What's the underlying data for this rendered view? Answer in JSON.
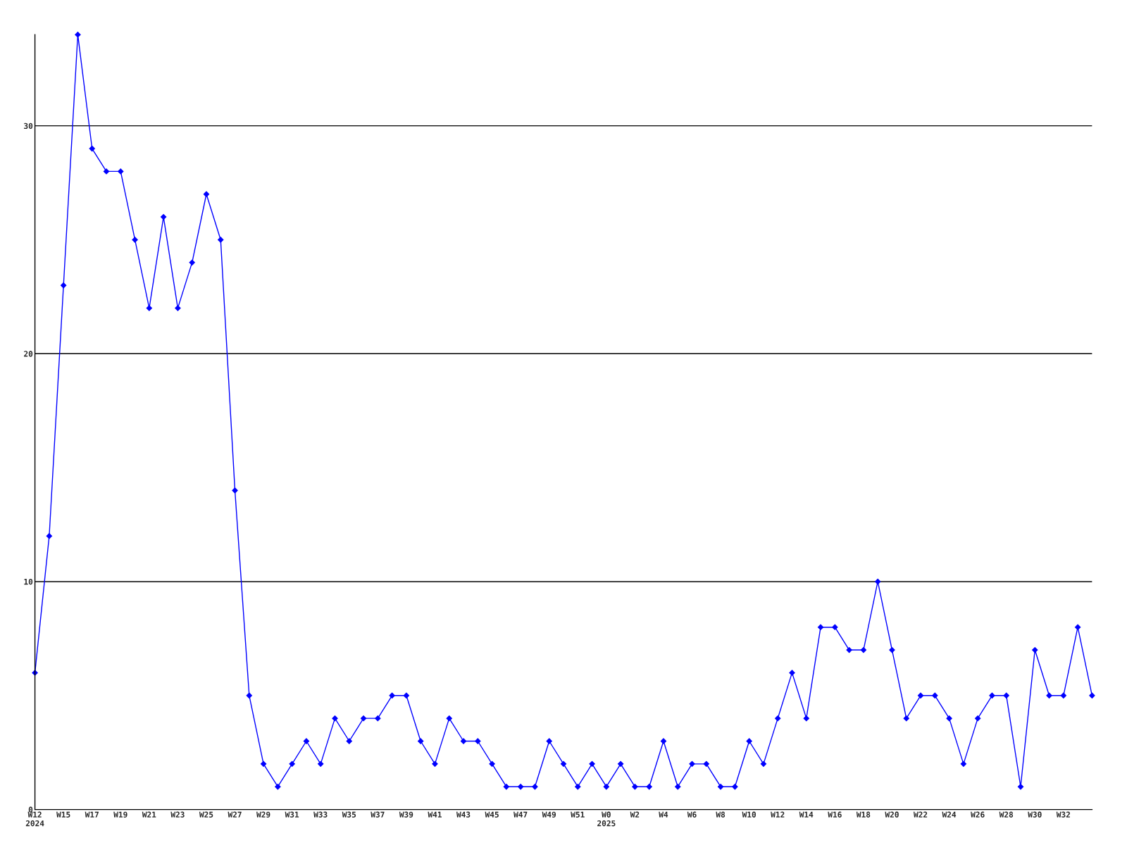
{
  "chart_data": {
    "type": "line",
    "categories": [
      "W12\n2024",
      null,
      "W15",
      null,
      "W17",
      null,
      "W19",
      null,
      "W21",
      null,
      "W23",
      null,
      "W25",
      null,
      "W27",
      null,
      "W29",
      null,
      "W31",
      null,
      "W33",
      null,
      "W35",
      null,
      "W37",
      null,
      "W39",
      null,
      "W41",
      null,
      "W43",
      null,
      "W45",
      null,
      "W47",
      null,
      "W49",
      null,
      "W51",
      null,
      "W0\n2025",
      null,
      "W2",
      null,
      "W4",
      null,
      "W6",
      null,
      "W8",
      null,
      "W10",
      null,
      "W12",
      null,
      "W14",
      null,
      "W16",
      null,
      "W18",
      null,
      "W20",
      null,
      "W22",
      null,
      "W24",
      null,
      "W26",
      null,
      "W28",
      null,
      "W30",
      null,
      "W32",
      null,
      null
    ],
    "series": [
      {
        "color": "#0000ff",
        "values": [
          6,
          12,
          23,
          34,
          29,
          28,
          28,
          25,
          22,
          26,
          22,
          24,
          27,
          25,
          14,
          5,
          2,
          1,
          2,
          3,
          2,
          4,
          3,
          4,
          4,
          5,
          5,
          3,
          2,
          4,
          3,
          3,
          2,
          1,
          1,
          1,
          3,
          2,
          1,
          2,
          1,
          2,
          1,
          1,
          3,
          1,
          2,
          2,
          1,
          1,
          3,
          2,
          4,
          6,
          4,
          8,
          8,
          7,
          7,
          10,
          7,
          4,
          5,
          5,
          4,
          2,
          4,
          5,
          5,
          1,
          7,
          5,
          5,
          8,
          5
        ]
      }
    ],
    "ylim": [
      0,
      34
    ],
    "yticks": [
      0,
      10,
      20,
      30
    ],
    "grid": "y",
    "marker": "diamond",
    "line_style": "solid",
    "legend": false
  }
}
